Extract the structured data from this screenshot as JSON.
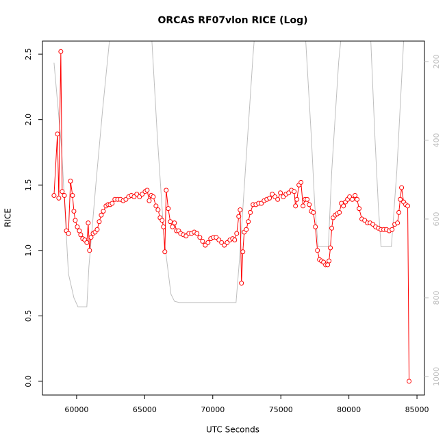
{
  "chart_data": {
    "type": "line",
    "title": "ORCAS RF07vlon RICE (Log)",
    "xlabel": "UTC Seconds",
    "ylabel": "RICE",
    "xlim": [
      57490,
      85550
    ],
    "ylim": [
      -0.105,
      2.6
    ],
    "y2lim": [
      1047,
      148
    ],
    "xticks": [
      60000,
      65000,
      70000,
      75000,
      80000,
      85000
    ],
    "yticks": [
      {
        "value": 0,
        "label": "0.0"
      },
      0.5,
      {
        "value": 1,
        "label": "1.0"
      },
      1.5,
      {
        "value": 2,
        "label": "2.0"
      },
      2.5
    ],
    "y2ticks": [
      200,
      400,
      600,
      800,
      1000
    ],
    "series": [
      {
        "color": "#bebebe",
        "axis": "y2",
        "markers": false,
        "x": [
          58340,
          58890,
          59400,
          59800,
          60100,
          60750,
          60900,
          61410,
          61910,
          62410,
          62510,
          65430,
          65530,
          65930,
          66430,
          66930,
          67190,
          67540,
          71710,
          71960,
          72460,
          72960,
          73120,
          76730,
          76830,
          77240,
          77490,
          77740,
          78490,
          78740,
          79250,
          79500,
          81510,
          81610,
          81910,
          82160,
          82360,
          83120,
          83520,
          84020,
          84120
        ],
        "values": [
          203,
          417,
          739,
          800,
          823,
          823,
          722,
          513,
          322,
          148,
          113,
          113,
          148,
          391,
          652,
          791,
          809,
          812,
          812,
          704,
          443,
          183,
          113,
          113,
          148,
          391,
          565,
          670,
          670,
          478,
          200,
          113,
          113,
          148,
          391,
          565,
          670,
          670,
          478,
          148,
          113
        ]
      },
      {
        "color": "#ff0000",
        "markers": true,
        "x": [
          58340,
          58590,
          58690,
          58840,
          58940,
          59100,
          59250,
          59400,
          59550,
          59700,
          59800,
          59900,
          60050,
          60200,
          60300,
          60450,
          60600,
          60750,
          60850,
          60950,
          61060,
          61210,
          61360,
          61510,
          61660,
          61810,
          61960,
          62160,
          62310,
          62460,
          62610,
          62810,
          63020,
          63220,
          63420,
          63620,
          63820,
          64020,
          64220,
          64420,
          64620,
          64820,
          65030,
          65180,
          65330,
          65480,
          65630,
          65830,
          65980,
          66130,
          66280,
          66380,
          66480,
          66580,
          66730,
          66880,
          67040,
          67190,
          67340,
          67490,
          67640,
          67840,
          68040,
          68240,
          68440,
          68640,
          68840,
          69050,
          69250,
          69450,
          69650,
          69850,
          70050,
          70250,
          70450,
          70650,
          70850,
          71060,
          71260,
          71460,
          71610,
          71760,
          71910,
          72010,
          72110,
          72210,
          72310,
          72460,
          72610,
          72760,
          72960,
          73170,
          73370,
          73570,
          73770,
          73970,
          74170,
          74370,
          74570,
          74770,
          74970,
          75180,
          75380,
          75580,
          75780,
          75980,
          76080,
          76180,
          76330,
          76480,
          76630,
          76780,
          76930,
          77090,
          77240,
          77390,
          77540,
          77690,
          77840,
          77990,
          78140,
          78290,
          78440,
          78540,
          78640,
          78740,
          78840,
          79000,
          79150,
          79300,
          79450,
          79600,
          79750,
          79900,
          80050,
          80250,
          80450,
          80600,
          80750,
          80950,
          81160,
          81360,
          81560,
          81760,
          81960,
          82160,
          82360,
          82560,
          82760,
          82960,
          83170,
          83370,
          83570,
          83670,
          83770,
          83870,
          84020,
          84170,
          84320,
          84420
        ],
        "values": [
          1.42,
          1.89,
          1.4,
          2.52,
          1.45,
          1.42,
          1.15,
          1.13,
          1.53,
          1.42,
          1.3,
          1.23,
          1.18,
          1.15,
          1.12,
          1.09,
          1.08,
          1.06,
          1.21,
          1.0,
          1.1,
          1.13,
          1.14,
          1.16,
          1.22,
          1.27,
          1.3,
          1.34,
          1.35,
          1.35,
          1.36,
          1.39,
          1.39,
          1.39,
          1.38,
          1.39,
          1.41,
          1.42,
          1.41,
          1.43,
          1.41,
          1.43,
          1.45,
          1.46,
          1.38,
          1.42,
          1.41,
          1.34,
          1.31,
          1.25,
          1.23,
          1.18,
          0.99,
          1.46,
          1.32,
          1.22,
          1.18,
          1.21,
          1.15,
          1.15,
          1.13,
          1.12,
          1.11,
          1.13,
          1.13,
          1.14,
          1.13,
          1.1,
          1.07,
          1.04,
          1.06,
          1.09,
          1.1,
          1.1,
          1.08,
          1.06,
          1.04,
          1.06,
          1.08,
          1.09,
          1.08,
          1.13,
          1.26,
          1.31,
          0.75,
          0.99,
          1.14,
          1.16,
          1.22,
          1.29,
          1.35,
          1.35,
          1.36,
          1.36,
          1.38,
          1.39,
          1.4,
          1.43,
          1.41,
          1.39,
          1.44,
          1.41,
          1.43,
          1.44,
          1.46,
          1.45,
          1.34,
          1.39,
          1.5,
          1.52,
          1.34,
          1.39,
          1.39,
          1.35,
          1.3,
          1.29,
          1.18,
          1.0,
          0.93,
          0.92,
          0.91,
          0.89,
          0.89,
          0.92,
          1.02,
          1.17,
          1.25,
          1.27,
          1.28,
          1.29,
          1.36,
          1.34,
          1.37,
          1.39,
          1.41,
          1.39,
          1.42,
          1.39,
          1.32,
          1.24,
          1.23,
          1.21,
          1.21,
          1.2,
          1.18,
          1.17,
          1.16,
          1.16,
          1.16,
          1.15,
          1.16,
          1.2,
          1.21,
          1.29,
          1.39,
          1.48,
          1.37,
          1.35,
          1.34,
          0.0
        ]
      }
    ]
  }
}
